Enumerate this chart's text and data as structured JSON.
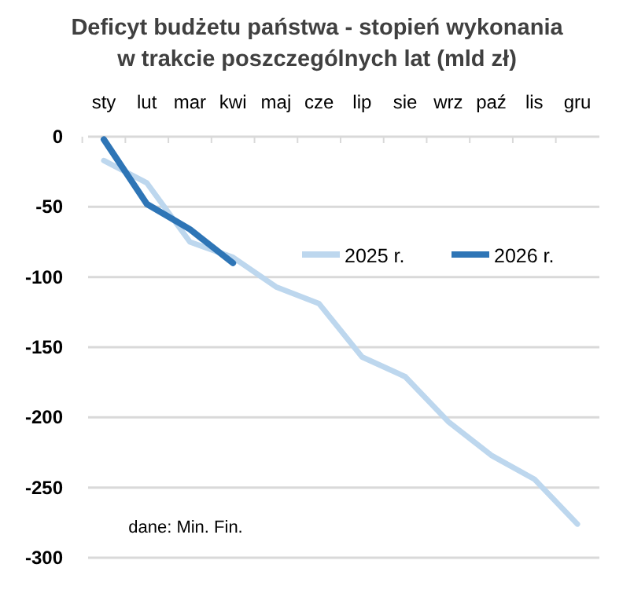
{
  "chart_data": {
    "type": "line",
    "title": "Deficyt budżetu państwa - stopień wykonania w trakcie poszczególnych lat (mld zł)",
    "categories": [
      "sty",
      "lut",
      "mar",
      "kwi",
      "maj",
      "cze",
      "lip",
      "sie",
      "wrz",
      "paź",
      "lis",
      "gru"
    ],
    "series": [
      {
        "name": "2025 r.",
        "color": "#bdd7ee",
        "values": [
          -17,
          -33,
          -75,
          -86,
          -107,
          -119,
          -157,
          -171,
          -203,
          -227,
          -244,
          -276
        ]
      },
      {
        "name": "2026 r.",
        "color": "#2e75b6",
        "values": [
          -2,
          -48,
          -66,
          -90,
          null,
          null,
          null,
          null,
          null,
          null,
          null,
          null
        ]
      }
    ],
    "ylim": [
      -300,
      0
    ],
    "yticks": [
      -300,
      -250,
      -200,
      -150,
      -100,
      -50,
      0
    ],
    "grid": "y",
    "legend": "right",
    "annotations": [
      "dane: Min. Fin."
    ]
  }
}
